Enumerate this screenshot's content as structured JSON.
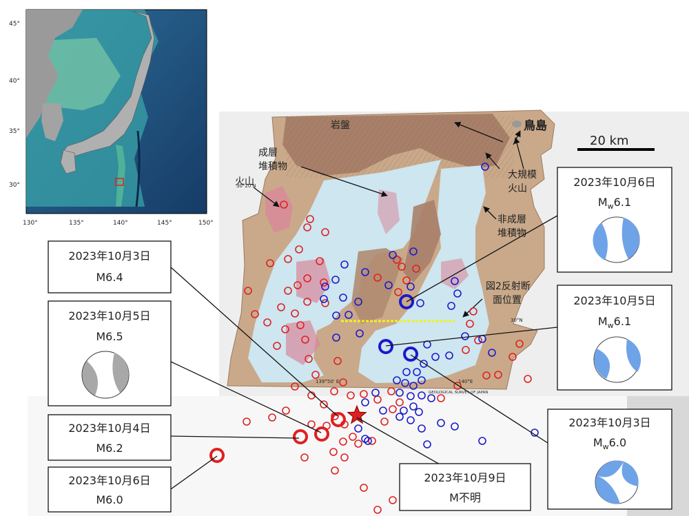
{
  "inset": {
    "lat_labels": [
      "45°",
      "40°",
      "35°",
      "30°"
    ],
    "lon_labels": [
      "130°",
      "135°",
      "140°",
      "145°",
      "150°"
    ]
  },
  "geology": {
    "scale_bar": "20 km",
    "island_name": "鳥島",
    "labels": {
      "bedrock": "岩盤",
      "stratified_1": "成層",
      "stratified_2": "堆積物",
      "volcano": "火山",
      "large_volcano_1": "大規模",
      "large_volcano_2": "火山",
      "nonstrat_1": "非成層",
      "nonstrat_2": "堆積物",
      "profile_1": "図2反射断",
      "profile_2": "面位置"
    },
    "tick_labels": {
      "lat_top": "30°20'N",
      "lat_right": "30°N",
      "lon_left": "139°50' E",
      "lon_right": "140°E"
    },
    "survey_credit": "GEOLOGICAL SURVEY OF JAPAN"
  },
  "events": [
    {
      "date": "2023年10月3日",
      "mag": "M6.4",
      "has_mechanism": false
    },
    {
      "date": "2023年10月5日",
      "mag": "M6.5",
      "has_mechanism": true
    },
    {
      "date": "2023年10月4日",
      "mag": "M6.2",
      "has_mechanism": false
    },
    {
      "date": "2023年10月6日",
      "mag": "M6.0",
      "has_mechanism": false
    },
    {
      "date": "2023年10月9日",
      "mag": "M不明",
      "has_mechanism": false
    },
    {
      "date": "2023年10月6日",
      "mag_prefix": "M",
      "mag_sub": "w",
      "mag_value": "6.1",
      "has_mechanism": true
    },
    {
      "date": "2023年10月5日",
      "mag_prefix": "M",
      "mag_sub": "w",
      "mag_value": "6.1",
      "has_mechanism": true
    },
    {
      "date": "2023年10月3日",
      "mag_prefix": "M",
      "mag_sub": "w",
      "mag_value": "6.0",
      "has_mechanism": true
    }
  ],
  "colors": {
    "red_events": "#e02020",
    "blue_events": "#1a1acc",
    "mechanism_fill_blue": "#6fa3e8",
    "mechanism_fill_gray": "#a8a8a8",
    "sea_light_blue": "#cde6f0",
    "volcanic_pink": "#d9889a",
    "bedrock_brown": "#a8806a",
    "sediment_tan": "#c9a98a",
    "profile_line": "#f2f21a"
  }
}
